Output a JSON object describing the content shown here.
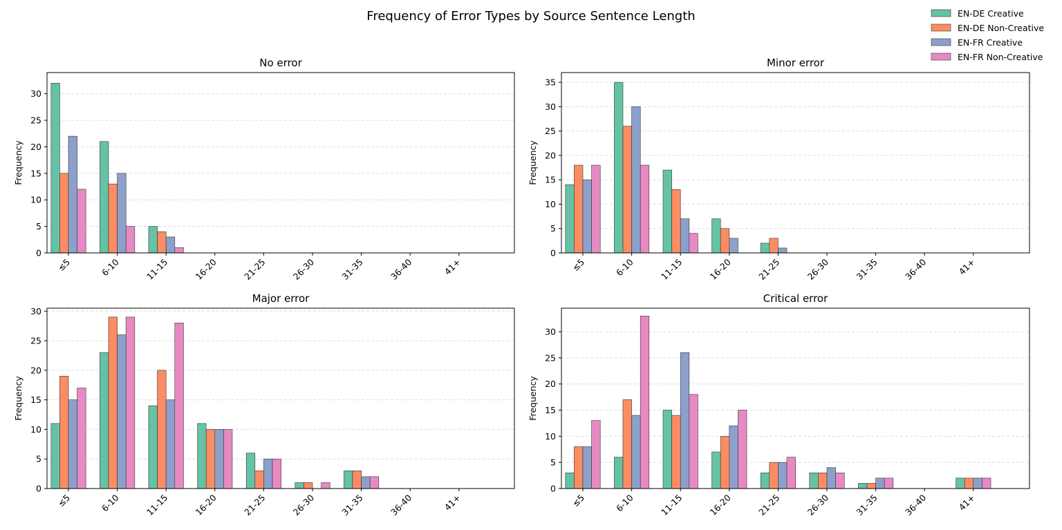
{
  "chart_data": {
    "type": "bar",
    "title": "Frequency of Error Types by Source Sentence Length",
    "categories": [
      "≤5",
      "6-10",
      "11-15",
      "16-20",
      "21-25",
      "26-30",
      "31-35",
      "36-40",
      "41+"
    ],
    "legend_position": "top-right",
    "grid": "y-dashed",
    "series_colors": [
      "#66c2a5",
      "#fc8d62",
      "#8da0cb",
      "#e78ac3"
    ],
    "series_names": [
      "EN-DE Creative",
      "EN-DE Non-Creative",
      "EN-FR Creative",
      "EN-FR Non-Creative"
    ],
    "panels": [
      {
        "title": "No error",
        "ylabel": "Frequency",
        "ylim": [
          0,
          34
        ],
        "yticks": [
          0,
          5,
          10,
          15,
          20,
          25,
          30
        ],
        "series": [
          {
            "values": [
              32,
              21,
              5,
              0,
              0,
              0,
              0,
              0,
              0
            ]
          },
          {
            "values": [
              15,
              13,
              4,
              0,
              0,
              0,
              0,
              0,
              0
            ]
          },
          {
            "values": [
              22,
              15,
              3,
              0,
              0,
              0,
              0,
              0,
              0
            ]
          },
          {
            "values": [
              12,
              5,
              1,
              0,
              0,
              0,
              0,
              0,
              0
            ]
          }
        ]
      },
      {
        "title": "Minor error",
        "ylabel": "Frequency",
        "ylim": [
          0,
          37
        ],
        "yticks": [
          0,
          5,
          10,
          15,
          20,
          25,
          30,
          35
        ],
        "series": [
          {
            "values": [
              14,
              35,
              17,
              7,
              2,
              0,
              0,
              0,
              0
            ]
          },
          {
            "values": [
              18,
              26,
              13,
              5,
              3,
              0,
              0,
              0,
              0
            ]
          },
          {
            "values": [
              15,
              30,
              7,
              3,
              1,
              0,
              0,
              0,
              0
            ]
          },
          {
            "values": [
              18,
              18,
              4,
              0,
              0,
              0,
              0,
              0,
              0
            ]
          }
        ]
      },
      {
        "title": "Major error",
        "ylabel": "Frequency",
        "ylim": [
          0,
          30.5
        ],
        "yticks": [
          0,
          5,
          10,
          15,
          20,
          25,
          30
        ],
        "series": [
          {
            "values": [
              11,
              23,
              14,
              11,
              6,
              1,
              3,
              0,
              0
            ]
          },
          {
            "values": [
              19,
              29,
              20,
              10,
              3,
              1,
              3,
              0,
              0
            ]
          },
          {
            "values": [
              15,
              26,
              15,
              10,
              5,
              0,
              2,
              0,
              0
            ]
          },
          {
            "values": [
              17,
              29,
              28,
              10,
              5,
              1,
              2,
              0,
              0
            ]
          }
        ]
      },
      {
        "title": "Critical error",
        "ylabel": "Frequency",
        "ylim": [
          0,
          34.5
        ],
        "yticks": [
          0,
          5,
          10,
          15,
          20,
          25,
          30
        ],
        "series": [
          {
            "values": [
              3,
              6,
              15,
              7,
              3,
              3,
              1,
              0,
              2
            ]
          },
          {
            "values": [
              8,
              17,
              14,
              10,
              5,
              3,
              1,
              0,
              2
            ]
          },
          {
            "values": [
              8,
              14,
              26,
              12,
              5,
              4,
              2,
              0,
              2
            ]
          },
          {
            "values": [
              13,
              33,
              18,
              15,
              6,
              3,
              2,
              0,
              2
            ]
          }
        ]
      }
    ]
  }
}
